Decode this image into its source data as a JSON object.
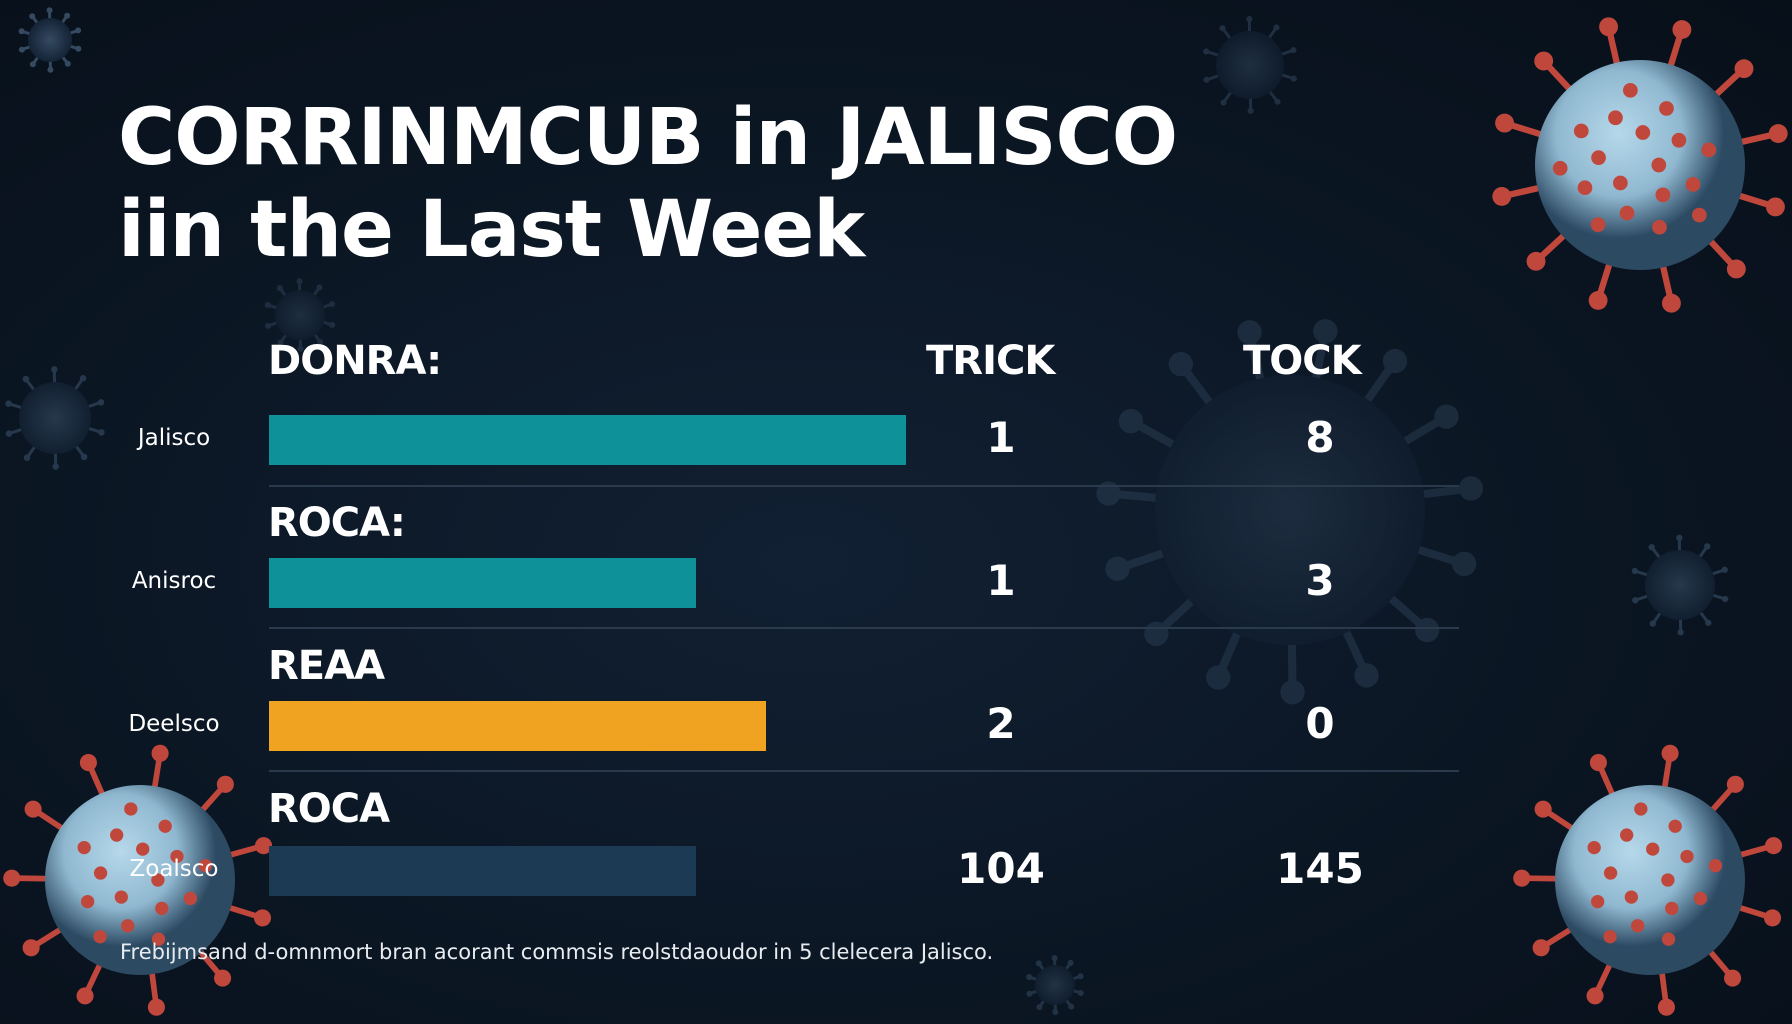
{
  "title": {
    "line1": "CORRINMCUB in JALISCO",
    "line2": "iin the Last Week"
  },
  "columns": {
    "trick": "TRICK",
    "tock": "TOCK"
  },
  "footer": "Frebijmsand d-omnmort bran acorant commsis reolstdaoudor in 5 clelecera Jalisco.",
  "colors": {
    "background": "#0b1623",
    "teal": "#0e9199",
    "orange": "#f0a321",
    "navy": "#1d3a55",
    "virus_body": "#8fb8d0",
    "virus_spike": "#c0473c"
  },
  "chart_data": {
    "type": "bar",
    "orientation": "horizontal",
    "rows": [
      {
        "section": "DONRA:",
        "label": "Jalisco",
        "bar_fraction": 1.0,
        "trick": "1",
        "tock": "8",
        "color": "#0e9199"
      },
      {
        "section": "ROCA:",
        "label": "Anisroc",
        "bar_fraction": 0.67,
        "trick": "1",
        "tock": "3",
        "color": "#0e9199"
      },
      {
        "section": "REAA",
        "label": "Deelsco",
        "bar_fraction": 0.78,
        "trick": "2",
        "tock": "0",
        "color": "#f0a321"
      },
      {
        "section": "ROCA",
        "label": "Zoalsco",
        "bar_fraction": 0.67,
        "trick": "104",
        "tock": "145",
        "color": "#1d3a55"
      }
    ],
    "grid": false,
    "legend": "none"
  }
}
